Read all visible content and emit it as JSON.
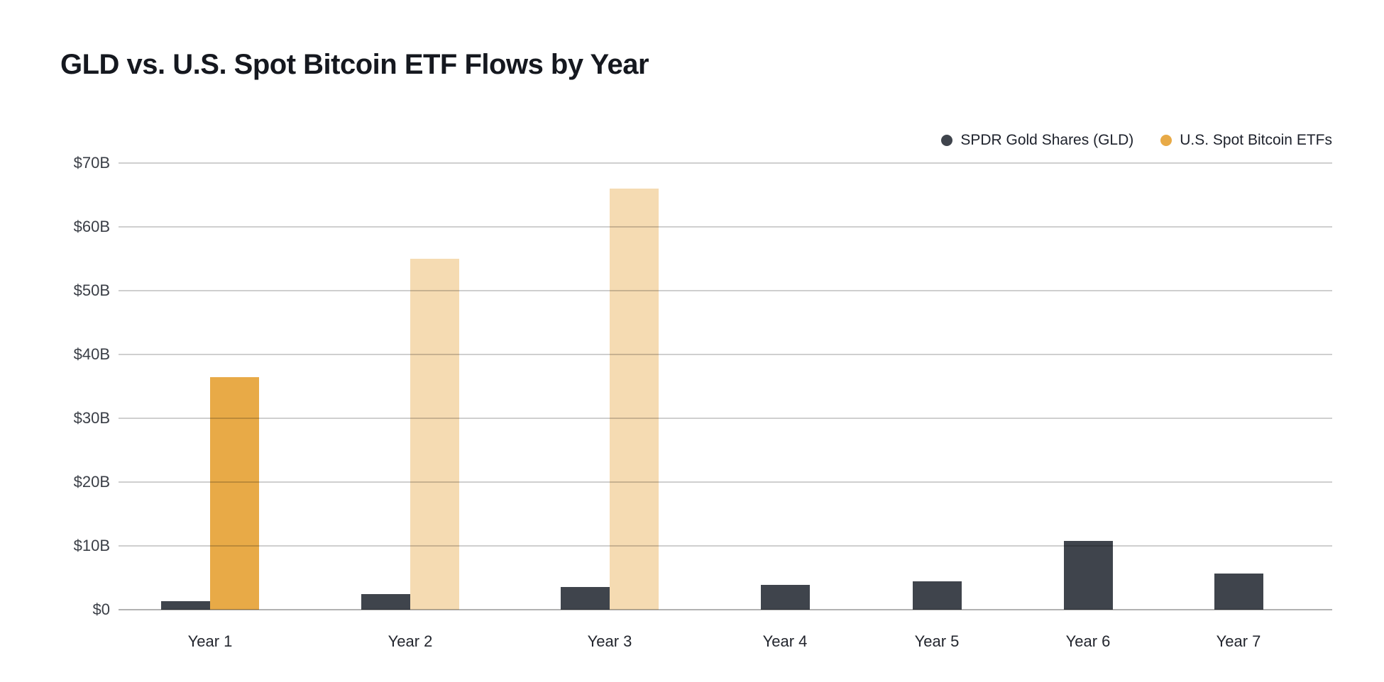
{
  "title": "GLD vs. U.S. Spot Bitcoin ETF Flows by Year",
  "legend": {
    "items": [
      {
        "label": "SPDR Gold Shares (GLD)",
        "color": "#3F444C"
      },
      {
        "label": "U.S. Spot Bitcoin ETFs",
        "color": "#E8AA47"
      }
    ],
    "position": "top-right"
  },
  "chart_data": {
    "type": "bar",
    "title": "GLD vs. U.S. Spot Bitcoin ETF Flows by Year",
    "categories": [
      "Year 1",
      "Year 2",
      "Year 3",
      "Year 4",
      "Year 5",
      "Year 6",
      "Year 7"
    ],
    "series": [
      {
        "name": "SPDR Gold Shares (GLD)",
        "color": "#3F444C",
        "values": [
          1.3,
          2.4,
          3.6,
          3.9,
          4.5,
          10.8,
          5.7
        ]
      },
      {
        "name": "U.S. Spot Bitcoin ETFs",
        "color": "#E8AA47",
        "values": [
          36.5,
          55,
          66,
          null,
          null,
          null,
          null
        ],
        "faded": [
          false,
          true,
          true,
          null,
          null,
          null,
          null
        ],
        "faded_opacity": 0.42
      }
    ],
    "unit": "$B",
    "xlabel": "",
    "ylabel": "",
    "ylim": [
      0,
      70
    ],
    "ytick_labels": [
      "$0",
      "$10B",
      "$20B",
      "$30B",
      "$40B",
      "$50B",
      "$60B",
      "$70B"
    ],
    "ytick_values": [
      0,
      10,
      20,
      30,
      40,
      50,
      60,
      70
    ],
    "grid": true,
    "gridlines_over_bars": true,
    "legend_position": "top-right"
  }
}
